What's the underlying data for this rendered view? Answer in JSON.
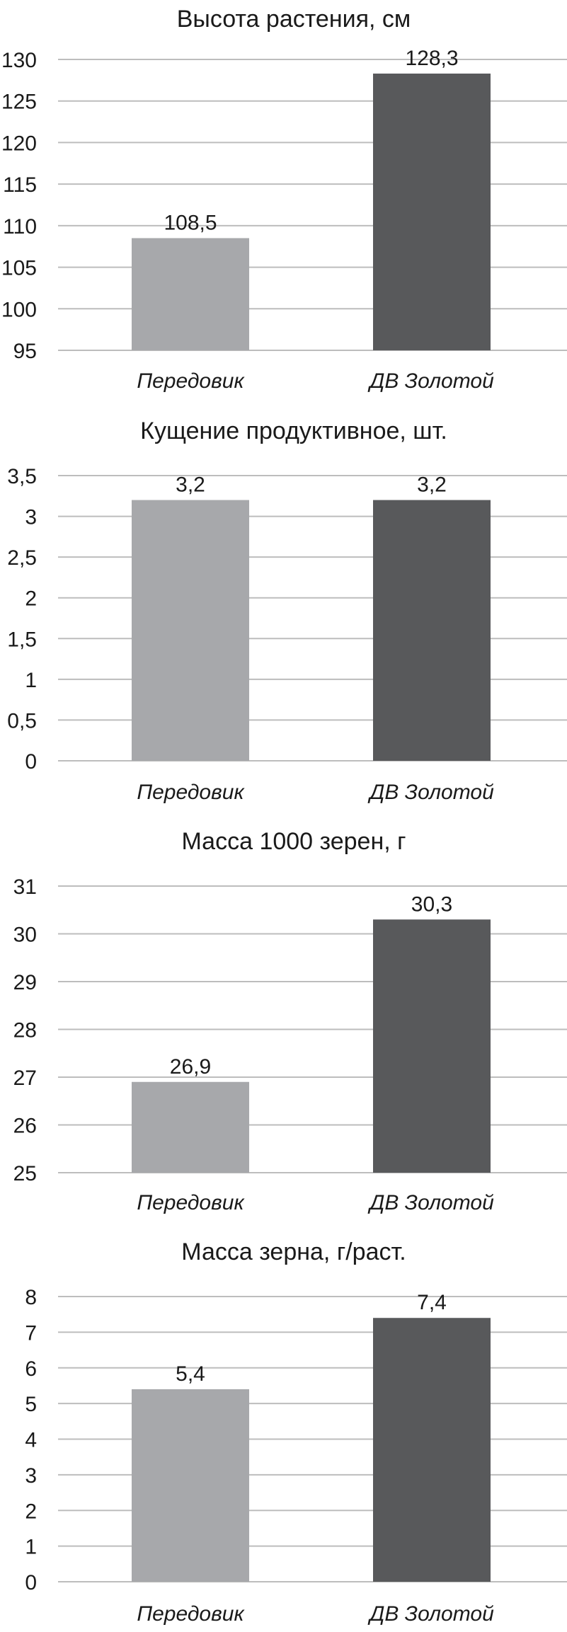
{
  "colors": {
    "series_light": "#a7a8ab",
    "series_dark": "#58595b",
    "grid": "#bdbdbd",
    "text": "#1a1a1a"
  },
  "chart_data": [
    {
      "type": "bar",
      "title": "Высота растения, см",
      "categories": [
        "Передовик",
        "ДВ Золотой"
      ],
      "values": [
        108.5,
        128.3
      ],
      "value_labels": [
        "108,5",
        "128,3"
      ],
      "ylim": [
        95,
        130
      ],
      "yticks": [
        95,
        100,
        105,
        110,
        115,
        120,
        125,
        130
      ],
      "ytick_labels": [
        "95",
        "100",
        "105",
        "110",
        "115",
        "120",
        "125",
        "130"
      ],
      "grid": true
    },
    {
      "type": "bar",
      "title": "Кущение продуктивное, шт.",
      "categories": [
        "Передовик",
        "ДВ Золотой"
      ],
      "values": [
        3.2,
        3.2
      ],
      "value_labels": [
        "3,2",
        "3,2"
      ],
      "ylim": [
        0,
        3.5
      ],
      "yticks": [
        0,
        0.5,
        1,
        1.5,
        2,
        2.5,
        3,
        3.5
      ],
      "ytick_labels": [
        "0",
        "0,5",
        "1",
        "1,5",
        "2",
        "2,5",
        "3",
        "3,5"
      ],
      "grid": true
    },
    {
      "type": "bar",
      "title": "Масса 1000 зерен, г",
      "categories": [
        "Передовик",
        "ДВ Золотой"
      ],
      "values": [
        26.9,
        30.3
      ],
      "value_labels": [
        "26,9",
        "30,3"
      ],
      "ylim": [
        25,
        31
      ],
      "yticks": [
        25,
        26,
        27,
        28,
        29,
        30,
        31
      ],
      "ytick_labels": [
        "25",
        "26",
        "27",
        "28",
        "29",
        "30",
        "31"
      ],
      "grid": true
    },
    {
      "type": "bar",
      "title": "Масса зерна, г/раст.",
      "categories": [
        "Передовик",
        "ДВ Золотой"
      ],
      "values": [
        5.4,
        7.4
      ],
      "value_labels": [
        "5,4",
        "7,4"
      ],
      "ylim": [
        0,
        8
      ],
      "yticks": [
        0,
        1,
        2,
        3,
        4,
        5,
        6,
        7,
        8
      ],
      "ytick_labels": [
        "0",
        "1",
        "2",
        "3",
        "4",
        "5",
        "6",
        "7",
        "8"
      ],
      "grid": true
    }
  ]
}
